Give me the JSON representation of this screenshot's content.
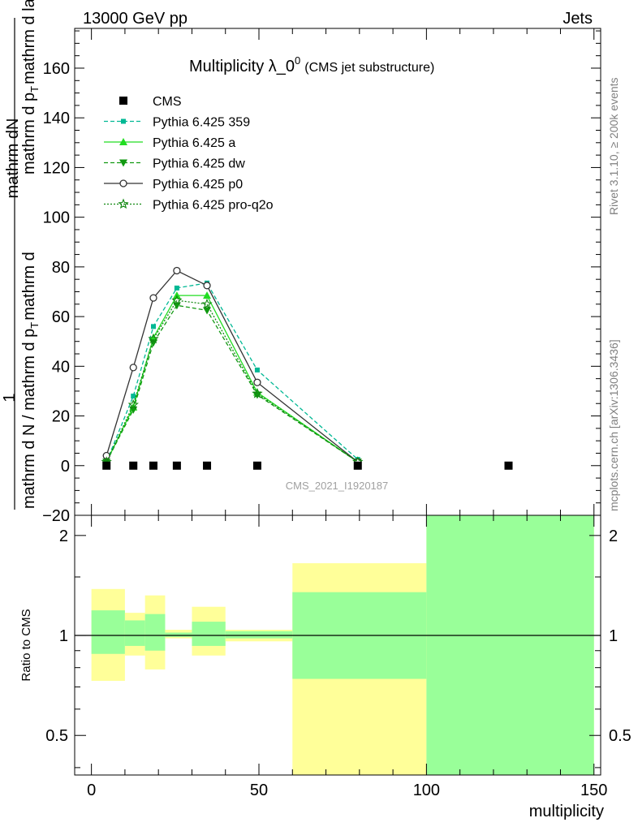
{
  "header": {
    "left": "13000 GeV pp",
    "right": "Jets"
  },
  "side_labels": {
    "rivet": "Rivet 3.1.10, ≥ 200k events",
    "mcplots": "mcplots.cern.ch [arXiv:1306.3436]"
  },
  "chart_data": [
    {
      "type": "line",
      "title": "Multiplicity λ_0",
      "title_sup": "0",
      "subtitle": "(CMS jet substructure)",
      "watermark": "CMS_2021_I1920187",
      "ylabel_numerator": "1",
      "ylabel_num2": "mathrm dN",
      "ylabel_denominator": "mathrm d N / mathrm d p",
      "ylabel_denominator_2": "mathrm d p",
      "ylabel_sub_T": "T",
      "ylabel_tail": "mathrm d lambda",
      "ylabel_mid": "mathrm d",
      "xlim": [
        -5,
        152
      ],
      "ylim": [
        -20,
        176
      ],
      "xticks": [
        0,
        50,
        100,
        150
      ],
      "xtick_labels": [
        "0",
        "50",
        "100",
        "150"
      ],
      "yticks": [
        -20,
        0,
        20,
        40,
        60,
        80,
        100,
        120,
        140,
        160
      ],
      "ytick_labels": [
        "−20",
        "0",
        "20",
        "40",
        "60",
        "80",
        "100",
        "120",
        "140",
        "160"
      ],
      "legend_position": "top-left",
      "series": [
        {
          "name": "CMS",
          "color": "#000000",
          "marker": "square",
          "dash": "none",
          "x": [
            4.5,
            12.5,
            18.5,
            25.5,
            34.5,
            49.5,
            79.5,
            124.5
          ],
          "y": [
            0,
            0,
            0,
            0,
            0,
            0,
            0,
            0
          ]
        },
        {
          "name": "Pythia 6.425 359",
          "color": "#00b894",
          "marker": "small-square",
          "dash": "5,3",
          "x": [
            4.5,
            12.5,
            18.5,
            25.5,
            34.5,
            49.5,
            79.5
          ],
          "y": [
            1.5,
            28,
            56,
            71.5,
            73.5,
            38.5,
            2.5
          ]
        },
        {
          "name": "Pythia 6.425 a",
          "color": "#22dd22",
          "marker": "triangle-up",
          "dash": "none",
          "x": [
            4.5,
            12.5,
            18.5,
            25.5,
            34.5,
            49.5,
            79.5
          ],
          "y": [
            1.5,
            23.5,
            51.5,
            68.5,
            68.5,
            29.5,
            1.5
          ]
        },
        {
          "name": "Pythia 6.425 dw",
          "color": "#119911",
          "marker": "triangle-down",
          "dash": "5,3",
          "x": [
            4.5,
            12.5,
            18.5,
            25.5,
            34.5,
            49.5,
            79.5
          ],
          "y": [
            1.5,
            22.5,
            49.5,
            64.5,
            62.5,
            28.5,
            1.5
          ]
        },
        {
          "name": "Pythia 6.425 p0",
          "color": "#333333",
          "marker": "circle-open",
          "dash": "none",
          "x": [
            4.5,
            12.5,
            18.5,
            25.5,
            34.5,
            49.5,
            79.5
          ],
          "y": [
            4,
            39.5,
            67.5,
            78.5,
            72.5,
            33.5,
            1.5
          ]
        },
        {
          "name": "Pythia 6.425 pro-q2o",
          "color": "#118811",
          "marker": "star-open",
          "dash": "2,2",
          "x": [
            4.5,
            12.5,
            18.5,
            25.5,
            34.5,
            49.5,
            79.5
          ],
          "y": [
            1.5,
            24.5,
            51,
            66.5,
            65,
            29,
            1.5
          ]
        }
      ]
    },
    {
      "type": "area",
      "ylabel": "Ratio to CMS",
      "xlabel": "multiplicity",
      "xlim": [
        -5,
        152
      ],
      "ylim": [
        0.38,
        2.3
      ],
      "log_y": true,
      "yticks": [
        0.5,
        1,
        2
      ],
      "ytick_labels": [
        "0.5",
        "1",
        "2"
      ],
      "reference_line": 1,
      "bands": {
        "bin_edges": [
          0,
          10,
          16,
          22,
          30,
          40,
          60,
          100,
          150
        ],
        "yellow_low": [
          0.73,
          0.87,
          0.79,
          0.98,
          0.87,
          0.96,
          0.38,
          0.38
        ],
        "yellow_high": [
          1.38,
          1.17,
          1.32,
          1.04,
          1.22,
          1.04,
          1.65,
          2.3
        ],
        "yellow_color": "#ffff99",
        "green_low": [
          0.88,
          0.93,
          0.9,
          0.99,
          0.93,
          0.98,
          0.74,
          0.38
        ],
        "green_high": [
          1.19,
          1.11,
          1.16,
          1.02,
          1.1,
          1.03,
          1.35,
          2.3
        ],
        "green_color": "#99ff99"
      }
    }
  ]
}
